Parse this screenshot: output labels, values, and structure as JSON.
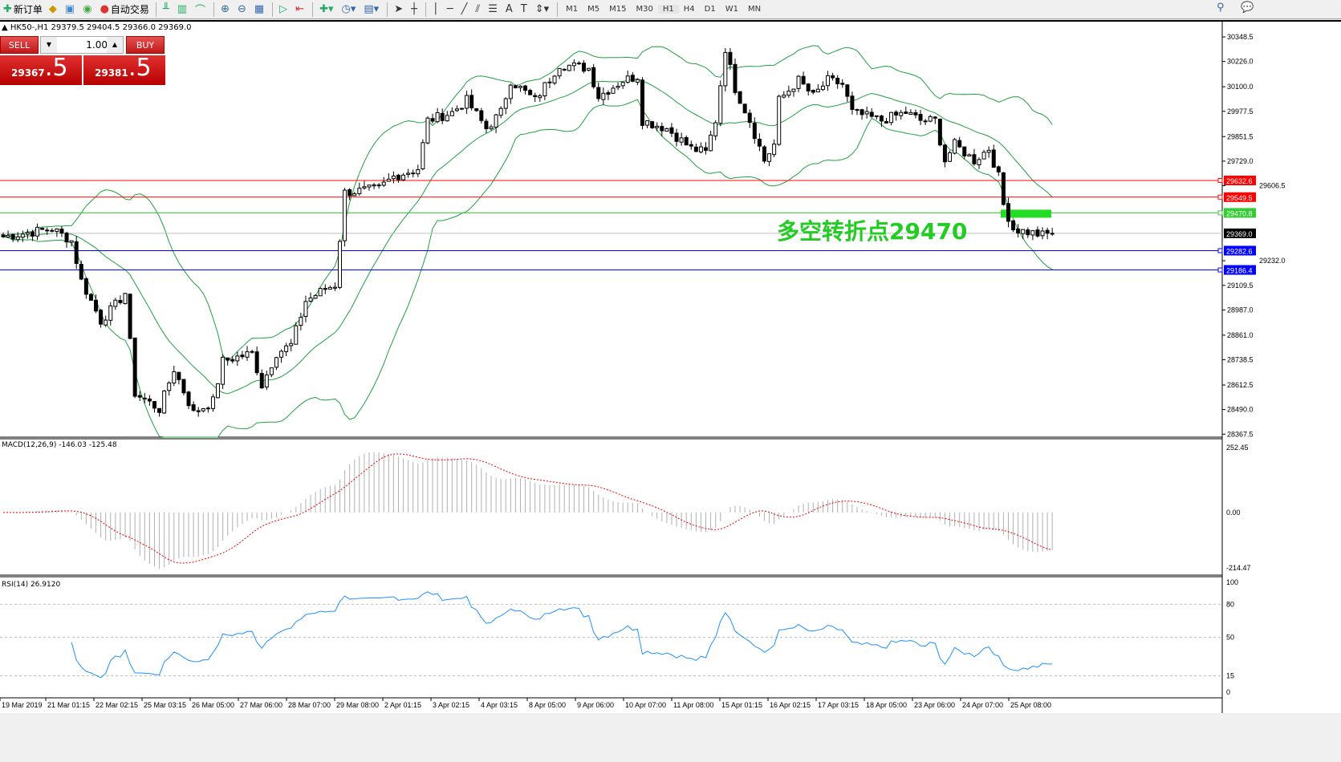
{
  "toolbar": {
    "new_order": "新订单",
    "auto_trading": "自动交易",
    "timeframes": [
      "M1",
      "M5",
      "M15",
      "M30",
      "H1",
      "H4",
      "D1",
      "W1",
      "MN"
    ],
    "active_timeframe": "H1"
  },
  "chart": {
    "header": "HK50-,H1  29379.5 29404.5 29366.0 29369.0",
    "annotation": "多空转折点29470",
    "trade": {
      "sell_label": "SELL",
      "buy_label": "BUY",
      "lot": "1.00",
      "sell_main": "29367",
      "sell_frac": ".5",
      "buy_main": "29381",
      "buy_frac": ".5"
    },
    "price_axis": [
      "30348.5",
      "30226.0",
      "30100.0",
      "29977.5",
      "29851.5",
      "29729.0",
      "29606.5",
      "29232.0",
      "29109.5",
      "28987.0",
      "28861.0",
      "28738.5",
      "28612.5",
      "28490.0",
      "28367.5"
    ],
    "levels": [
      {
        "price": "29632.6",
        "color": "#ff0000"
      },
      {
        "price": "29549.5",
        "color": "#ff0000"
      },
      {
        "price": "29470.8",
        "color": "#33cc33"
      },
      {
        "price": "29369.0",
        "color": "#000000",
        "current": true
      },
      {
        "price": "29282.6",
        "color": "#0000ff"
      },
      {
        "price": "29186.4",
        "color": "#0000ff"
      }
    ],
    "macd_label": "MACD(12,26,9) -146.03 -125.48",
    "macd_axis": [
      "252.45",
      "0.00",
      "-214.47"
    ],
    "rsi_label": "RSI(14) 26.9120",
    "rsi_axis": [
      "100",
      "80",
      "50",
      "15",
      "0"
    ],
    "time_axis": [
      "19 Mar 2019",
      "21 Mar 01:15",
      "22 Mar 02:15",
      "25 Mar 03:15",
      "26 Mar 05:00",
      "27 Mar 06:00",
      "28 Mar 07:00",
      "29 Mar 08:00",
      "2 Apr 01:15",
      "3 Apr 02:15",
      "4 Apr 03:15",
      "8 Apr 05:00",
      "9 Apr 06:00",
      "10 Apr 07:00",
      "11 Apr 08:00",
      "15 Apr 01:15",
      "16 Apr 02:15",
      "17 Apr 03:15",
      "18 Apr 05:00",
      "23 Apr 06:00",
      "24 Apr 07:00",
      "25 Apr 08:00"
    ]
  },
  "chart_data": {
    "type": "candlestick",
    "symbol": "HK50-",
    "timeframe": "H1",
    "ylim": [
      28367.5,
      30348.5
    ],
    "key_closes": [
      [
        0,
        29352
      ],
      [
        10,
        29392
      ],
      [
        14,
        29332
      ],
      [
        16,
        29132
      ],
      [
        20,
        28932
      ],
      [
        23,
        29012
      ],
      [
        25,
        29072
      ],
      [
        27,
        28572
      ],
      [
        32,
        28492
      ],
      [
        35,
        28692
      ],
      [
        39,
        28472
      ],
      [
        43,
        28532
      ],
      [
        45,
        28732
      ],
      [
        51,
        28772
      ],
      [
        53,
        28612
      ],
      [
        56,
        28772
      ],
      [
        59,
        28812
      ],
      [
        62,
        29032
      ],
      [
        66,
        29092
      ],
      [
        68,
        29112
      ],
      [
        70,
        29572
      ],
      [
        77,
        29592
      ],
      [
        80,
        29652
      ],
      [
        85,
        29692
      ],
      [
        87,
        29932
      ],
      [
        92,
        29972
      ],
      [
        95,
        30032
      ],
      [
        99,
        29892
      ],
      [
        102,
        29972
      ],
      [
        104,
        30132
      ],
      [
        109,
        30032
      ],
      [
        114,
        30212
      ],
      [
        120,
        30192
      ],
      [
        122,
        30052
      ],
      [
        127,
        30132
      ],
      [
        130,
        30152
      ],
      [
        131,
        29932
      ],
      [
        136,
        29892
      ],
      [
        141,
        29792
      ],
      [
        144,
        29772
      ],
      [
        146,
        29932
      ],
      [
        148,
        30292
      ],
      [
        150,
        30092
      ],
      [
        153,
        29932
      ],
      [
        156,
        29732
      ],
      [
        158,
        29812
      ],
      [
        159,
        30032
      ],
      [
        163,
        30132
      ],
      [
        166,
        30052
      ],
      [
        169,
        30132
      ],
      [
        172,
        30112
      ],
      [
        174,
        29972
      ],
      [
        180,
        29932
      ],
      [
        185,
        29972
      ],
      [
        188,
        29932
      ],
      [
        191,
        29932
      ],
      [
        193,
        29732
      ],
      [
        195,
        29812
      ],
      [
        199,
        29732
      ],
      [
        202,
        29792
      ],
      [
        204,
        29652
      ],
      [
        205,
        29512
      ],
      [
        207,
        29392
      ],
      [
        209,
        29380
      ],
      [
        213,
        29360
      ],
      [
        215,
        29369
      ]
    ],
    "indicators": [
      "Bollinger Bands(20,2)",
      "MACD(12,26,9)",
      "RSI(14)"
    ]
  }
}
